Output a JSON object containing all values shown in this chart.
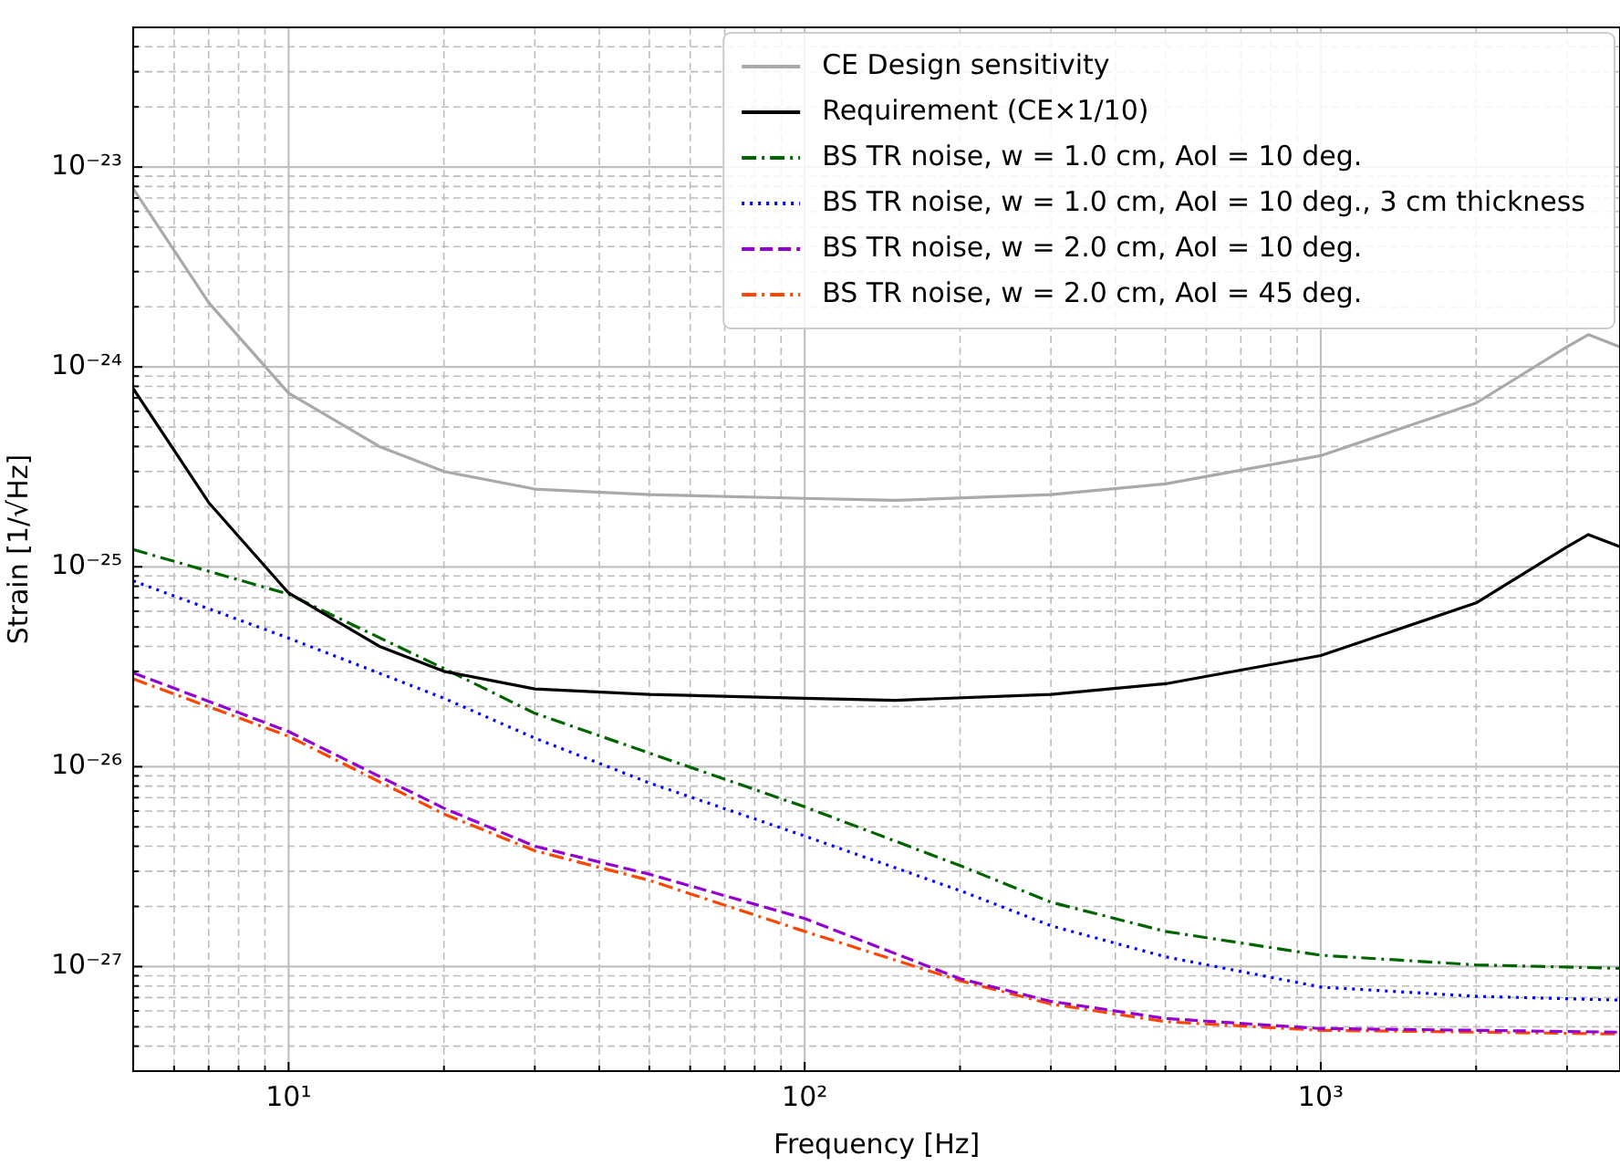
{
  "chart_data": {
    "type": "line",
    "xlabel": "Frequency [Hz]",
    "ylabel": "Strain [1/√Hz]",
    "log": "xy",
    "grid": true,
    "legend": "top right",
    "xlim": [
      5,
      3800
    ],
    "ylim": [
      3e-28,
      5e-23
    ],
    "xticks": [
      {
        "value": 6,
        "label": null
      },
      {
        "value": 7,
        "label": null
      },
      {
        "value": 8,
        "label": null
      },
      {
        "value": 9,
        "label": null
      },
      {
        "value": 10,
        "label": "10¹"
      },
      {
        "value": 20,
        "label": null
      },
      {
        "value": 30,
        "label": null
      },
      {
        "value": 40,
        "label": null
      },
      {
        "value": 50,
        "label": null
      },
      {
        "value": 60,
        "label": null
      },
      {
        "value": 70,
        "label": null
      },
      {
        "value": 80,
        "label": null
      },
      {
        "value": 90,
        "label": null
      },
      {
        "value": 100,
        "label": "10²"
      },
      {
        "value": 200,
        "label": null
      },
      {
        "value": 300,
        "label": null
      },
      {
        "value": 400,
        "label": null
      },
      {
        "value": 500,
        "label": null
      },
      {
        "value": 600,
        "label": null
      },
      {
        "value": 700,
        "label": null
      },
      {
        "value": 800,
        "label": null
      },
      {
        "value": 900,
        "label": null
      },
      {
        "value": 1000,
        "label": "10³"
      },
      {
        "value": 2000,
        "label": null
      },
      {
        "value": 3000,
        "label": null
      }
    ],
    "yticks": [
      {
        "value": 3e-28,
        "label": null
      },
      {
        "value": 4e-28,
        "label": null
      },
      {
        "value": 5e-28,
        "label": null
      },
      {
        "value": 6e-28,
        "label": null
      },
      {
        "value": 7e-28,
        "label": null
      },
      {
        "value": 8e-28,
        "label": null
      },
      {
        "value": 9e-28,
        "label": null
      },
      {
        "value": 1e-27,
        "label": "10⁻²⁷"
      },
      {
        "value": 2e-27,
        "label": null
      },
      {
        "value": 3e-27,
        "label": null
      },
      {
        "value": 4e-27,
        "label": null
      },
      {
        "value": 5e-27,
        "label": null
      },
      {
        "value": 6e-27,
        "label": null
      },
      {
        "value": 7e-27,
        "label": null
      },
      {
        "value": 8e-27,
        "label": null
      },
      {
        "value": 9e-27,
        "label": null
      },
      {
        "value": 1e-26,
        "label": "10⁻²⁶"
      },
      {
        "value": 2e-26,
        "label": null
      },
      {
        "value": 3e-26,
        "label": null
      },
      {
        "value": 4e-26,
        "label": null
      },
      {
        "value": 5e-26,
        "label": null
      },
      {
        "value": 6e-26,
        "label": null
      },
      {
        "value": 7e-26,
        "label": null
      },
      {
        "value": 8e-26,
        "label": null
      },
      {
        "value": 9e-26,
        "label": null
      },
      {
        "value": 1e-25,
        "label": "10⁻²⁵"
      },
      {
        "value": 2e-25,
        "label": null
      },
      {
        "value": 3e-25,
        "label": null
      },
      {
        "value": 4e-25,
        "label": null
      },
      {
        "value": 5e-25,
        "label": null
      },
      {
        "value": 6e-25,
        "label": null
      },
      {
        "value": 7e-25,
        "label": null
      },
      {
        "value": 8e-25,
        "label": null
      },
      {
        "value": 9e-25,
        "label": null
      },
      {
        "value": 1e-24,
        "label": "10⁻²⁴"
      },
      {
        "value": 2e-24,
        "label": null
      },
      {
        "value": 3e-24,
        "label": null
      },
      {
        "value": 4e-24,
        "label": null
      },
      {
        "value": 5e-24,
        "label": null
      },
      {
        "value": 6e-24,
        "label": null
      },
      {
        "value": 7e-24,
        "label": null
      },
      {
        "value": 8e-24,
        "label": null
      },
      {
        "value": 9e-24,
        "label": null
      },
      {
        "value": 1e-23,
        "label": "10⁻²³"
      },
      {
        "value": 2e-23,
        "label": null
      },
      {
        "value": 3e-23,
        "label": null
      },
      {
        "value": 4e-23,
        "label": null
      },
      {
        "value": 5e-23,
        "label": null
      }
    ],
    "series": [
      {
        "name": "CE Design sensitivity",
        "color": "#a9a9a9",
        "line_style": "solid",
        "x": [
          5,
          7,
          10,
          15,
          20,
          30,
          50,
          100,
          150,
          300,
          500,
          1000,
          2000,
          3000,
          3300,
          3800
        ],
        "values": [
          7.8e-24,
          2.1e-24,
          7.4e-25,
          4e-25,
          3e-25,
          2.45e-25,
          2.3e-25,
          2.2e-25,
          2.15e-25,
          2.3e-25,
          2.6e-25,
          3.6e-25,
          6.6e-25,
          1.26e-24,
          1.45e-24,
          1.26e-24
        ]
      },
      {
        "name": "Requirement (CE×1/10)",
        "color": "#000000",
        "line_style": "solid",
        "x": [
          5,
          7,
          10,
          15,
          20,
          30,
          50,
          100,
          150,
          300,
          500,
          1000,
          2000,
          3000,
          3300,
          3800
        ],
        "values": [
          7.8e-25,
          2.1e-25,
          7.4e-26,
          4e-26,
          3e-26,
          2.45e-26,
          2.3e-26,
          2.2e-26,
          2.15e-26,
          2.3e-26,
          2.6e-26,
          3.6e-26,
          6.6e-26,
          1.26e-25,
          1.45e-25,
          1.26e-25
        ]
      },
      {
        "name": "BS TR noise, w = 1.0 cm, AoI = 10 deg.",
        "color": "#006400",
        "line_style": "dashdot",
        "x": [
          5,
          10,
          20,
          30,
          50,
          100,
          200,
          300,
          500,
          1000,
          2000,
          3800
        ],
        "values": [
          1.22e-25,
          7.3e-26,
          3.1e-26,
          1.85e-26,
          1.17e-26,
          6.3e-27,
          3.2e-27,
          2.1e-27,
          1.5e-27,
          1.14e-27,
          1.02e-27,
          9.8e-28
        ]
      },
      {
        "name": "BS TR noise, w = 1.0 cm, AoI = 10 deg., 3 cm thickness",
        "color": "#0000ff",
        "line_style": "dotted",
        "x": [
          5,
          10,
          20,
          30,
          50,
          100,
          200,
          300,
          500,
          1000,
          2000,
          3800
        ],
        "values": [
          8.5e-26,
          4.4e-26,
          2.2e-26,
          1.39e-26,
          8.3e-27,
          4.5e-27,
          2.4e-27,
          1.6e-27,
          1.12e-27,
          7.9e-28,
          7.1e-28,
          6.8e-28
        ]
      },
      {
        "name": "BS TR noise, w = 2.0 cm, AoI = 10 deg.",
        "color": "#9400d3",
        "line_style": "dashed",
        "x": [
          5,
          10,
          20,
          30,
          50,
          100,
          200,
          300,
          500,
          1000,
          2000,
          3800
        ],
        "values": [
          2.95e-26,
          1.5e-26,
          6.2e-27,
          4e-27,
          2.9e-27,
          1.74e-27,
          8.7e-28,
          6.7e-28,
          5.5e-28,
          4.9e-28,
          4.8e-28,
          4.7e-28
        ]
      },
      {
        "name": "BS TR noise, w = 2.0 cm, AoI = 45 deg.",
        "color": "#ff4500",
        "line_style": "dashdot",
        "x": [
          5,
          10,
          20,
          30,
          50,
          100,
          200,
          300,
          500,
          1000,
          2000,
          3800
        ],
        "values": [
          2.75e-26,
          1.42e-26,
          5.8e-27,
          3.8e-27,
          2.7e-27,
          1.5e-27,
          8.5e-28,
          6.5e-28,
          5.3e-28,
          4.8e-28,
          4.7e-28,
          4.6e-28
        ]
      }
    ]
  }
}
